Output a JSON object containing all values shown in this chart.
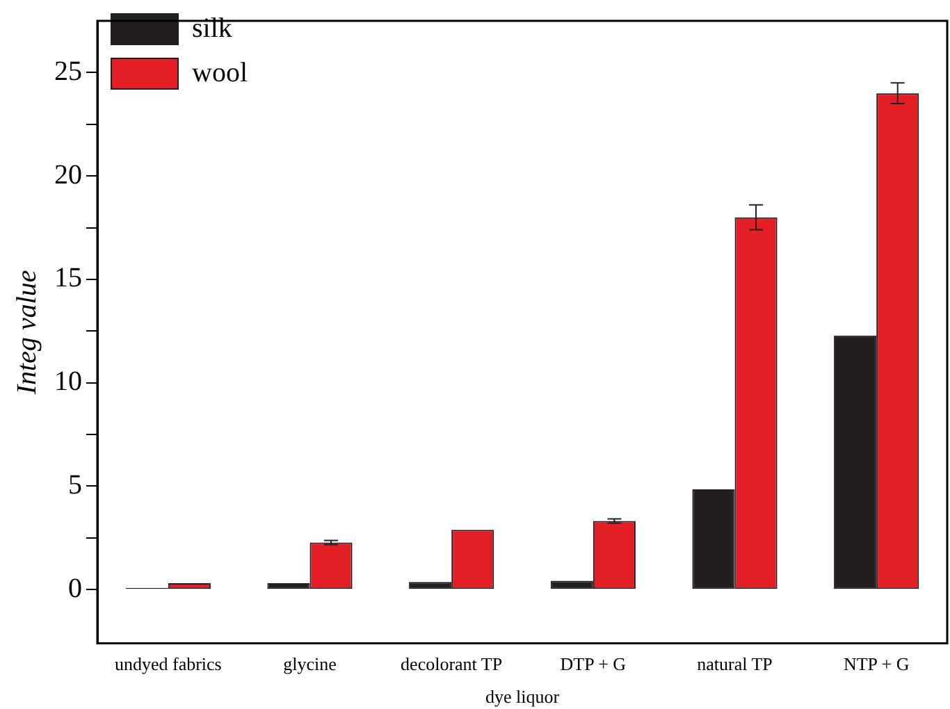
{
  "chart_data": {
    "type": "bar",
    "xlabel": "dye liquor",
    "ylabel": "Integ value",
    "categories": [
      "undyed fabrics",
      "glycine",
      "decolorant TP",
      "DTP + G",
      "natural TP",
      "NTP + G"
    ],
    "series": [
      {
        "name": "silk",
        "color": "#231f20",
        "values": [
          0.08,
          0.31,
          0.37,
          0.43,
          4.85,
          12.28
        ]
      },
      {
        "name": "wool",
        "color": "#e31e24",
        "values": [
          0.31,
          2.28,
          2.89,
          3.32,
          18.0,
          24.0
        ],
        "errors": [
          null,
          0.1,
          null,
          0.1,
          0.6,
          0.5
        ]
      }
    ],
    "ylim": [
      -2.6,
      27.5
    ],
    "yticks": [
      0,
      {
        "value": 2.5,
        "label": null
      },
      5,
      {
        "value": 7.5,
        "label": null
      },
      10,
      {
        "value": 12.5,
        "label": null
      },
      15,
      {
        "value": 17.5,
        "label": null
      },
      20,
      {
        "value": 22.5,
        "label": null
      },
      25
    ],
    "legend": "top left",
    "grid": false
  }
}
